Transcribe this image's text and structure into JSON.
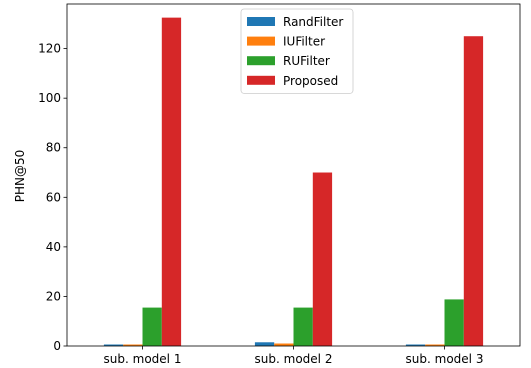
{
  "chart_data": {
    "type": "bar",
    "title": "",
    "xlabel": "",
    "ylabel": "PHN@50",
    "ylim": [
      0,
      138
    ],
    "yticks": [
      0,
      20,
      40,
      60,
      80,
      100,
      120
    ],
    "categories": [
      "sub. model 1",
      "sub. model 2",
      "sub. model 3"
    ],
    "series": [
      {
        "name": "RandFilter",
        "color": "#1f77b4",
        "values": [
          0.6,
          1.5,
          0.6
        ]
      },
      {
        "name": "IUFilter",
        "color": "#ff7f0e",
        "values": [
          0.6,
          1.0,
          0.6
        ]
      },
      {
        "name": "RUFilter",
        "color": "#2ca02c",
        "values": [
          15.5,
          15.5,
          18.8
        ]
      },
      {
        "name": "Proposed",
        "color": "#d62728",
        "values": [
          132.5,
          70.0,
          125.0
        ]
      }
    ],
    "legend_position": "top-center",
    "grid": false
  }
}
